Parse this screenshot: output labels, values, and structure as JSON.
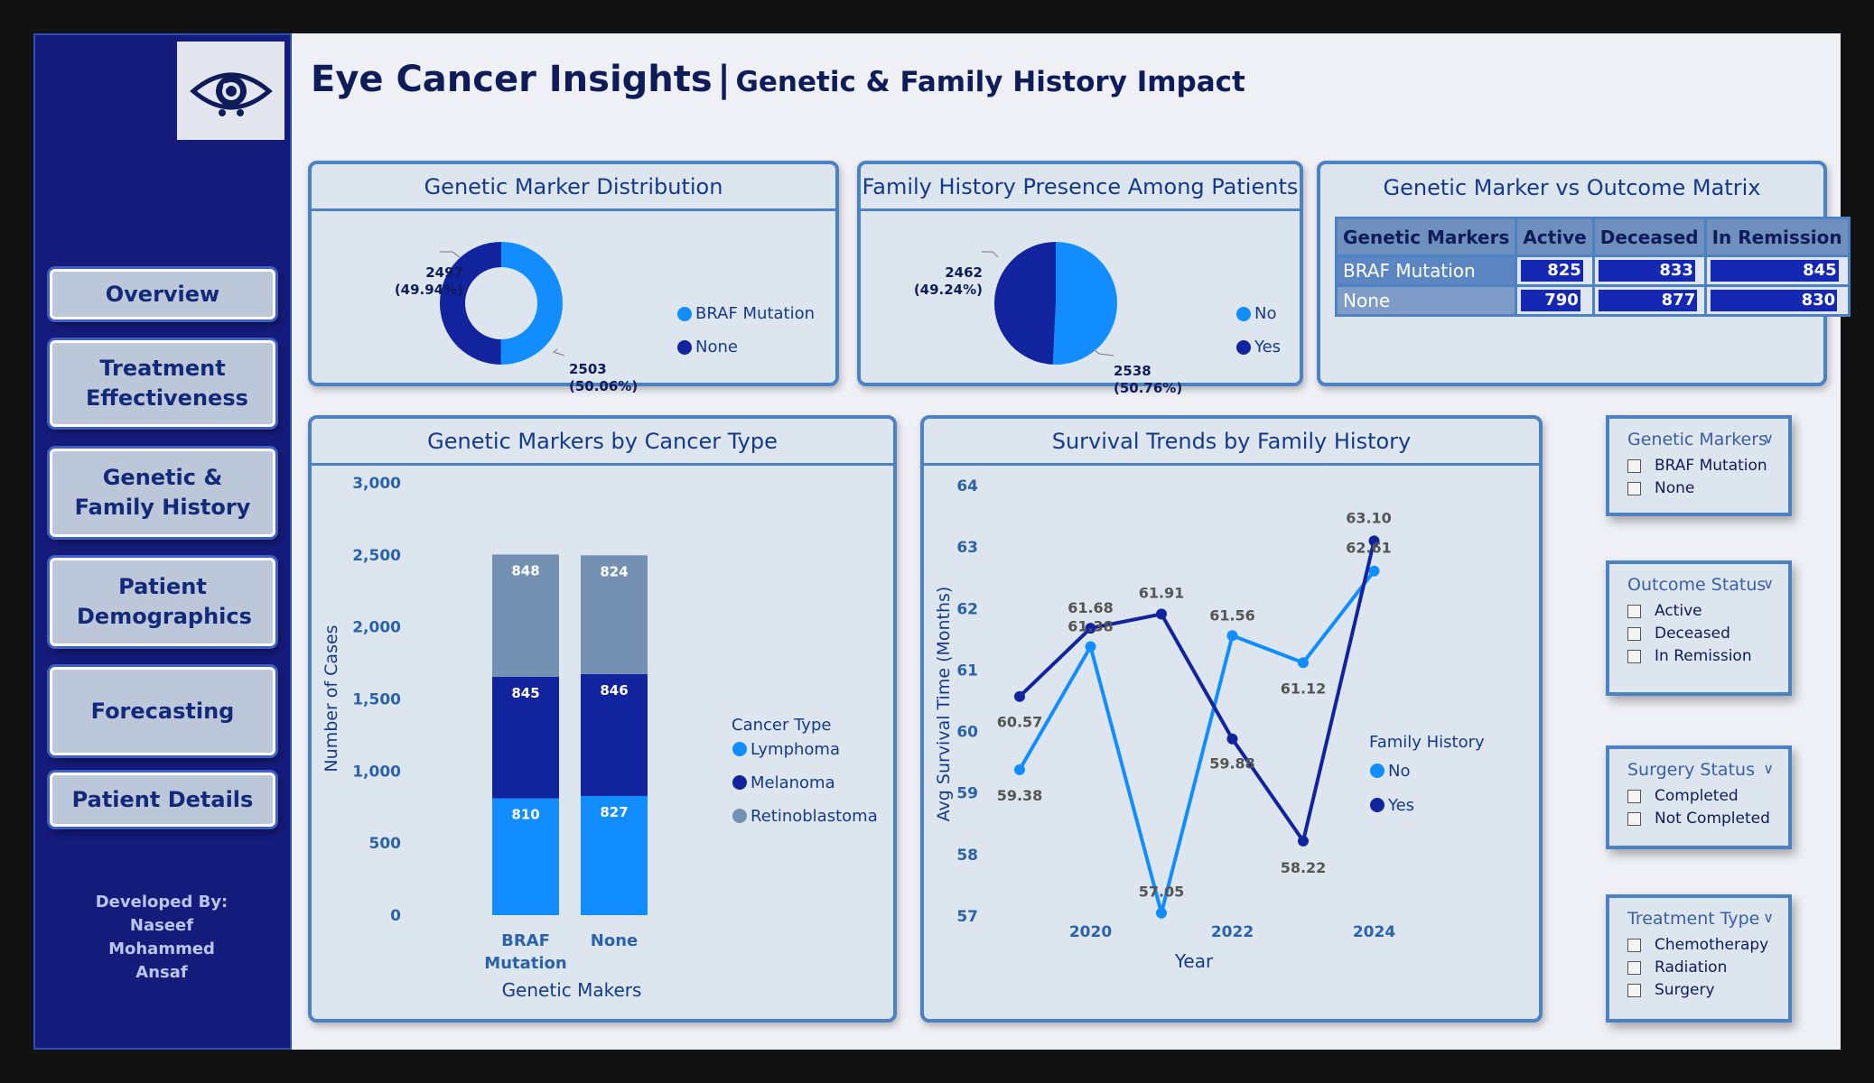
{
  "app": {
    "title": "Eye Cancer Insights",
    "separator": "|",
    "subtitle": "Genetic & Family History Impact"
  },
  "sidebar": {
    "nav": [
      {
        "label": "Overview"
      },
      {
        "label": "Treatment Effectiveness"
      },
      {
        "label": "Genetic & Family History"
      },
      {
        "label": "Patient Demographics"
      },
      {
        "label": "Forecasting"
      },
      {
        "label": "Patient Details"
      }
    ],
    "developer": {
      "heading": "Developed By:",
      "line1": "Naseef",
      "line2": "Mohammed",
      "line3": "Ansaf"
    }
  },
  "genetic_marker_card": {
    "title": "Genetic Marker Distribution",
    "label_none": {
      "value": "2497",
      "pct": "(49.94%)"
    },
    "label_braf": {
      "value": "2503",
      "pct": "(50.06%)"
    },
    "legend": [
      {
        "label": "BRAF Mutation",
        "color": "#118dff"
      },
      {
        "label": "None",
        "color": "#12239e"
      }
    ]
  },
  "family_history_card": {
    "title": "Family History Presence Among Patients",
    "label_yes": {
      "value": "2462",
      "pct": "(49.24%)"
    },
    "label_no": {
      "value": "2538",
      "pct": "(50.76%)"
    },
    "legend": [
      {
        "label": "No",
        "color": "#118dff"
      },
      {
        "label": "Yes",
        "color": "#12239e"
      }
    ]
  },
  "matrix_card": {
    "title": "Genetic Marker vs Outcome Matrix",
    "headers": [
      "Genetic Markers",
      "Active",
      "Deceased",
      "In Remission"
    ],
    "rows": [
      {
        "name": "BRAF Mutation",
        "active": "825",
        "deceased": "833",
        "remission": "845"
      },
      {
        "name": "None",
        "active": "790",
        "deceased": "877",
        "remission": "830"
      }
    ]
  },
  "bar_card": {
    "title": "Genetic Markers by Cancer Type"
  },
  "line_card": {
    "title": "Survival Trends by Family History"
  },
  "slicers": [
    {
      "title": "Genetic Markers",
      "options": [
        "BRAF Mutation",
        "None"
      ]
    },
    {
      "title": "Outcome Status",
      "options": [
        "Active",
        "Deceased",
        "In Remission"
      ]
    },
    {
      "title": "Surgery Status",
      "options": [
        "Completed",
        "Not Completed"
      ]
    },
    {
      "title": "Treatment Type",
      "options": [
        "Chemotherapy",
        "Radiation",
        "Surgery"
      ]
    }
  ],
  "icons": {
    "logo": "eye-icon",
    "chevron": "chevron-down-icon"
  },
  "chart_data": [
    {
      "type": "pie",
      "title": "Genetic Marker Distribution",
      "categories": [
        "BRAF Mutation",
        "None"
      ],
      "values": [
        2503,
        2497
      ],
      "percent": [
        50.06,
        49.94
      ],
      "donut": true,
      "colors": [
        "#118dff",
        "#12239e"
      ],
      "legend": "right"
    },
    {
      "type": "pie",
      "title": "Family History Presence Among Patients",
      "categories": [
        "No",
        "Yes"
      ],
      "values": [
        2538,
        2462
      ],
      "percent": [
        50.76,
        49.24
      ],
      "colors": [
        "#118dff",
        "#12239e"
      ],
      "legend": "right"
    },
    {
      "type": "bar",
      "stacked": true,
      "title": "Genetic Markers by Cancer Type",
      "xlabel": "Genetic Makers",
      "ylabel": "Number of Cases",
      "categories": [
        "BRAF Mutation",
        "None"
      ],
      "series": [
        {
          "name": "Lymphoma",
          "values": [
            810,
            827
          ],
          "color": "#118dff"
        },
        {
          "name": "Melanoma",
          "values": [
            845,
            846
          ],
          "color": "#12239e"
        },
        {
          "name": "Retinoblastoma",
          "values": [
            848,
            824
          ],
          "color": "#7491b3"
        }
      ],
      "ylim": [
        0,
        3000
      ],
      "yticks": [
        "0",
        "500",
        "1,000",
        "1,500",
        "2,000",
        "2,500",
        "3,000"
      ],
      "legend_title": "Cancer Type",
      "legend": "right"
    },
    {
      "type": "line",
      "title": "Survival Trends by Family History",
      "xlabel": "Year",
      "ylabel": "Avg Survival Time (Months)",
      "x": [
        2019,
        2020,
        2021,
        2022,
        2023,
        2024
      ],
      "xticks": [
        "2020",
        "2022",
        "2024"
      ],
      "ylim": [
        57,
        64
      ],
      "yticks": [
        "57",
        "58",
        "59",
        "60",
        "61",
        "62",
        "63",
        "64"
      ],
      "series": [
        {
          "name": "No",
          "values": [
            59.38,
            61.38,
            57.05,
            61.56,
            61.12,
            62.61
          ],
          "labels": [
            "59.38",
            "61.38",
            "57.05",
            "61.56",
            "61.12",
            "62.61"
          ],
          "color": "#118dff"
        },
        {
          "name": "Yes",
          "values": [
            60.57,
            61.68,
            61.91,
            59.88,
            58.22,
            63.1
          ],
          "labels": [
            "60.57",
            "61.68",
            "61.91",
            "59.88",
            "58.22",
            "63.10"
          ],
          "color": "#12239e"
        }
      ],
      "legend_title": "Family History",
      "legend": "right"
    }
  ]
}
